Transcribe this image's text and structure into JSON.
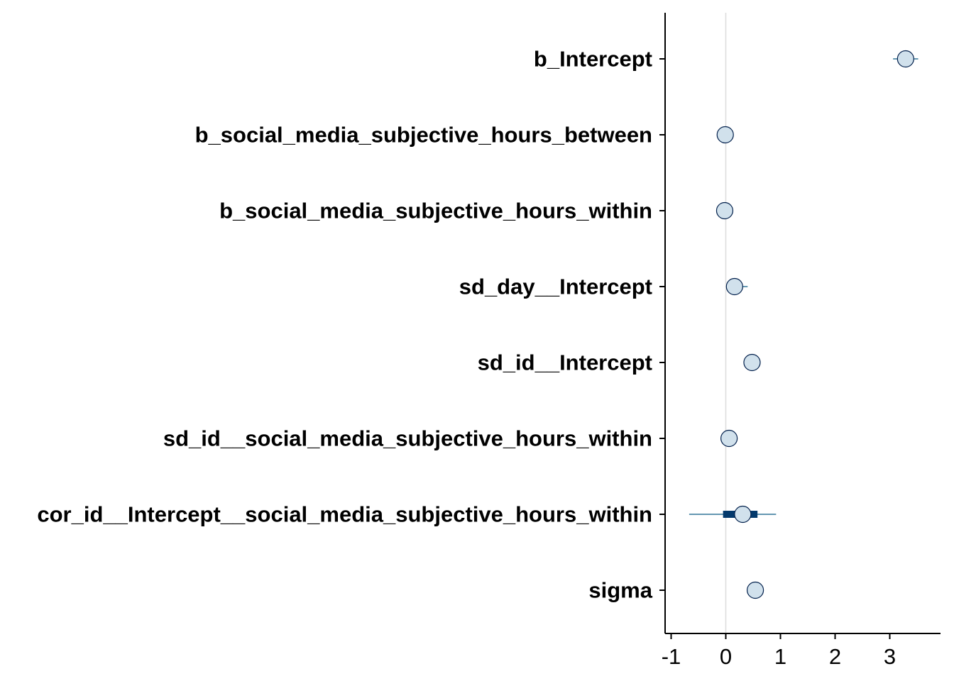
{
  "chart_data": {
    "type": "interval",
    "title": "",
    "xlabel": "",
    "ylabel": "",
    "xlim": [
      -1.2,
      3.9
    ],
    "xticks": [
      "-1",
      "0",
      "1",
      "2",
      "3"
    ],
    "reference_line": 0,
    "grid": false,
    "parameters": [
      {
        "label": "b_Intercept",
        "estimate": 3.29,
        "inner": [
          3.24,
          3.34
        ],
        "outer": [
          3.06,
          3.52
        ]
      },
      {
        "label": "b_social_media_subjective_hours_between",
        "estimate": -0.01,
        "inner": [
          -0.03,
          0.01
        ],
        "outer": [
          -0.08,
          0.06
        ]
      },
      {
        "label": "b_social_media_subjective_hours_within",
        "estimate": -0.02,
        "inner": [
          -0.04,
          0.0
        ],
        "outer": [
          -0.08,
          0.04
        ]
      },
      {
        "label": "sd_day__Intercept",
        "estimate": 0.16,
        "inner": [
          0.08,
          0.22
        ],
        "outer": [
          0.02,
          0.4
        ]
      },
      {
        "label": "sd_id__Intercept",
        "estimate": 0.48,
        "inner": [
          0.45,
          0.52
        ],
        "outer": [
          0.41,
          0.56
        ]
      },
      {
        "label": "sd_id__social_media_subjective_hours_within",
        "estimate": 0.06,
        "inner": [
          0.03,
          0.09
        ],
        "outer": [
          0.0,
          0.13
        ]
      },
      {
        "label": "cor_id__Intercept__social_media_subjective_hours_within",
        "estimate": 0.31,
        "inner": [
          -0.05,
          0.58
        ],
        "outer": [
          -0.67,
          0.92
        ]
      },
      {
        "label": "sigma",
        "estimate": 0.54,
        "inner": [
          0.52,
          0.56
        ],
        "outer": [
          0.5,
          0.58
        ]
      }
    ]
  },
  "colors": {
    "point_fill": "#d1e1ec",
    "point_stroke": "#011f4b",
    "outer_line": "#6497b1",
    "inner_bar": "#03396c",
    "zero_line": "#dcdcdc",
    "axis": "#000000"
  }
}
